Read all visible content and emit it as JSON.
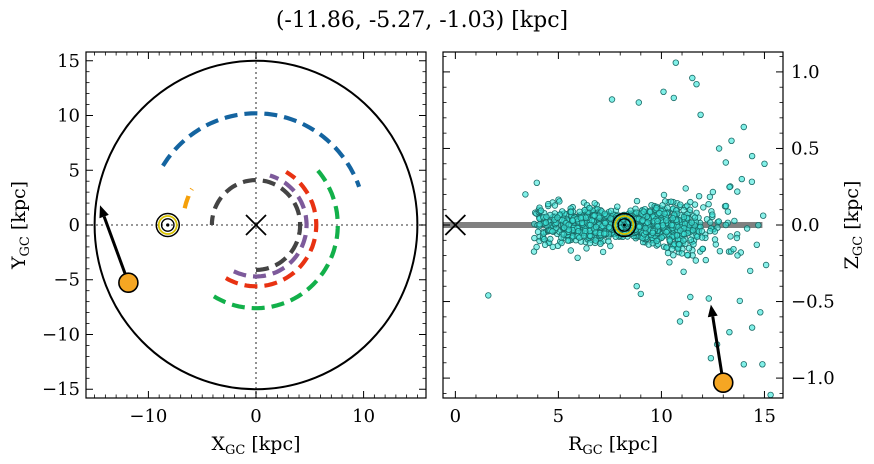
{
  "suptitle": "(-11.86, -5.27, -1.03) [kpc]",
  "colors": {
    "spiral_blue": "#1464a0",
    "spiral_green": "#12b04a",
    "spiral_orange": "#f5a00a",
    "spiral_red": "#e83212",
    "spiral_purple": "#7d5a9b",
    "spiral_gray": "#444444",
    "star_face": "#3ee8dc",
    "star_edge": "#1a6a66",
    "marker_fill": "#f5a623",
    "sun_ring": "#d8c200",
    "midplane": "#808080"
  },
  "chart_data": [
    {
      "type": "scatter",
      "panel": "left",
      "title": "",
      "xlabel": "X",
      "xlabel_sub": "GC",
      "xlabel_unit": "[kpc]",
      "ylabel": "Y",
      "ylabel_sub": "GC",
      "ylabel_unit": "[kpc]",
      "xlim": [
        -15.8,
        15.8
      ],
      "ylim": [
        -15.8,
        15.8
      ],
      "xticks": [
        -10,
        0,
        10
      ],
      "yticks": [
        -15,
        -10,
        -5,
        0,
        5,
        10,
        15
      ],
      "tick_labels_x": [
        "−10",
        "0",
        "10"
      ],
      "tick_labels_y": [
        "−15",
        "−10",
        "−5",
        "0",
        "5",
        "10",
        "15"
      ],
      "boundary_circle_radius": 15,
      "galactic_center": [
        0,
        0
      ],
      "sun": [
        -8.2,
        0
      ],
      "target": [
        -11.86,
        -5.27
      ],
      "arrow_to": [
        -14.5,
        1.8
      ],
      "spiral_arms": [
        {
          "color_key": "spiral_blue",
          "radius": 10.2,
          "center": [
            0,
            0
          ],
          "angle_start": 148,
          "angle_end": 20
        },
        {
          "color_key": "spiral_green",
          "radius": 7.6,
          "center": [
            0,
            0
          ],
          "angle_start": -121,
          "angle_end": 41
        },
        {
          "color_key": "spiral_orange",
          "radius": 6.8,
          "center": [
            0,
            0
          ],
          "angle_start": 167,
          "angle_end": 151
        },
        {
          "color_key": "spiral_red",
          "radius": 5.6,
          "center": [
            0,
            0
          ],
          "angle_start": -120,
          "angle_end": 60
        },
        {
          "color_key": "spiral_purple",
          "radius": 4.7,
          "center": [
            0,
            0
          ],
          "angle_start": -116,
          "angle_end": 74
        },
        {
          "color_key": "spiral_gray",
          "radius": 4.1,
          "center": [
            0,
            0
          ],
          "angle_start": -90,
          "angle_end": 180
        }
      ]
    },
    {
      "type": "scatter",
      "panel": "right",
      "title": "",
      "xlabel": "R",
      "xlabel_sub": "GC",
      "xlabel_unit": "[kpc]",
      "ylabel": "Z",
      "ylabel_sub": "GC",
      "ylabel_unit": "[kpc]",
      "xlim": [
        -0.6,
        15.9
      ],
      "ylim": [
        -1.13,
        1.13
      ],
      "xticks": [
        0,
        5,
        10,
        15
      ],
      "yticks": [
        -1.0,
        -0.5,
        0.0,
        0.5,
        1.0
      ],
      "tick_labels_x": [
        "0",
        "5",
        "10",
        "15"
      ],
      "tick_labels_y": [
        "−1.0",
        "−0.5",
        "0.0",
        "0.5",
        "1.0"
      ],
      "midplane": {
        "z": 0,
        "x_from": -0.6,
        "x_to": 14.9
      },
      "galactic_center": [
        0,
        0
      ],
      "sun": [
        8.2,
        0
      ],
      "target": [
        13.0,
        -1.03
      ],
      "arrow_to": [
        12.4,
        -0.52
      ],
      "stars_summary": "dense cloud of ~2000 stars centered near the Sun with spread increasing outward",
      "stars_sample": [
        [
          10.7,
          1.06
        ],
        [
          11.5,
          0.96
        ],
        [
          11.7,
          0.92
        ],
        [
          10.1,
          0.87
        ],
        [
          10.6,
          0.83
        ],
        [
          7.6,
          0.82
        ],
        [
          8.9,
          0.8
        ],
        [
          11.9,
          0.72
        ],
        [
          14.0,
          0.64
        ],
        [
          13.4,
          0.55
        ],
        [
          12.8,
          0.5
        ],
        [
          15.0,
          0.4
        ],
        [
          14.4,
          0.45
        ],
        [
          13.9,
          0.3
        ],
        [
          3.4,
          0.2
        ],
        [
          15.3,
          -1.11
        ],
        [
          14.9,
          -0.91
        ],
        [
          14.0,
          -0.91
        ],
        [
          14.4,
          -0.67
        ],
        [
          14.8,
          -0.57
        ],
        [
          11.4,
          -0.47
        ],
        [
          1.6,
          -0.46
        ],
        [
          9.0,
          -0.45
        ],
        [
          8.8,
          -0.4
        ],
        [
          12.3,
          -0.48
        ],
        [
          13.3,
          -0.7
        ],
        [
          12.4,
          -0.87
        ],
        [
          12.7,
          -0.78
        ],
        [
          10.9,
          -0.63
        ],
        [
          11.2,
          -0.58
        ]
      ]
    }
  ]
}
